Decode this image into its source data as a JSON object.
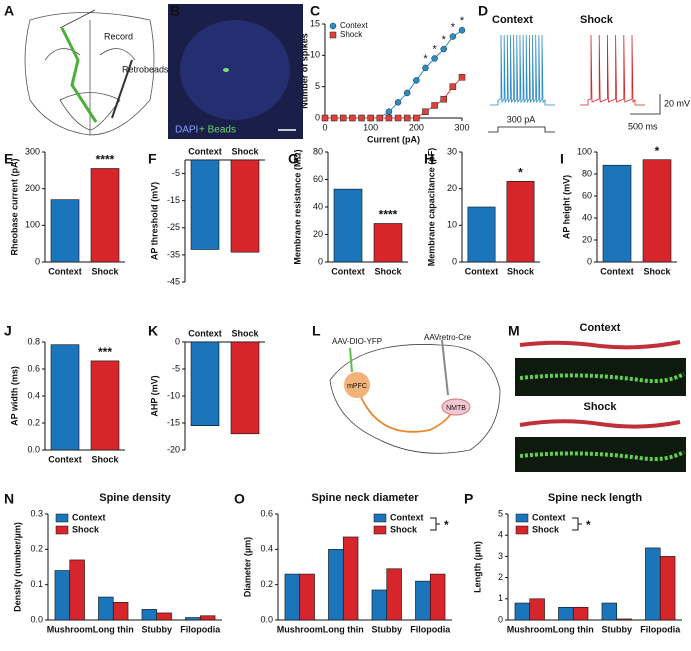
{
  "panel_letters": [
    "A",
    "B",
    "C",
    "D",
    "E",
    "F",
    "G",
    "H",
    "I",
    "J",
    "K",
    "L",
    "M",
    "N",
    "O",
    "P"
  ],
  "panel_a": {
    "record": "Record",
    "retrobeads": "Retrobeads"
  },
  "panel_b": {
    "dapi": "DAPI",
    "beads": "+ Beads"
  },
  "panel_d": {
    "context": "Context",
    "shock": "Shock",
    "step": "300 pA",
    "scale_v": "20 mV",
    "scale_t": "500 ms"
  },
  "panel_l": {
    "virus1": "AAV-DIO-YFP",
    "virus2": "AAVretro-Cre",
    "region1": "mPFC",
    "region2": "NMTB"
  },
  "panel_m": {
    "context": "Context",
    "shock": "Shock"
  },
  "chart_data": [
    {
      "type": "line",
      "xlabel": "Current (pA)",
      "ylabel": "Number of spikes",
      "x": [
        0,
        20,
        40,
        60,
        80,
        100,
        120,
        140,
        160,
        180,
        200,
        220,
        240,
        260,
        280,
        300
      ],
      "series": [
        {
          "name": "Context",
          "color": "#2b8cc4",
          "values": [
            0,
            0,
            0,
            0,
            0,
            0,
            0,
            1,
            2.5,
            4,
            6,
            8,
            9.5,
            11,
            13,
            14
          ]
        },
        {
          "name": "Shock",
          "color": "#e0403a",
          "values": [
            0,
            0,
            0,
            0,
            0,
            0,
            0,
            0,
            0,
            0,
            0,
            1,
            2,
            3,
            5,
            6.5
          ]
        }
      ],
      "xlim": [
        0,
        300
      ],
      "ylim": [
        0,
        15
      ],
      "xticks": [
        0,
        100,
        200,
        300
      ],
      "yticks": [
        0,
        5,
        10,
        15
      ],
      "legend": "upper left",
      "significance": [
        {
          "x": 220,
          "label": "*"
        },
        {
          "x": 240,
          "label": "*"
        },
        {
          "x": 260,
          "label": "*"
        },
        {
          "x": 280,
          "label": "*"
        },
        {
          "x": 300,
          "label": "*"
        }
      ]
    },
    {
      "type": "bar",
      "ylabel": "Rheobase current (pA)",
      "categories": [
        "Context",
        "Shock"
      ],
      "values": [
        170,
        255
      ],
      "colors": [
        "#1b75bb",
        "#d7262b"
      ],
      "ylim": [
        0,
        300
      ],
      "yticks": [
        0,
        100,
        200,
        300
      ],
      "annotation": "****"
    },
    {
      "type": "bar",
      "ylabel": "AP threshold (mV)",
      "categories": [
        "Context",
        "Shock"
      ],
      "values": [
        -33,
        -34
      ],
      "colors": [
        "#1b75bb",
        "#d7262b"
      ],
      "ylim": [
        -45,
        0
      ],
      "yticks": [
        -5,
        -15,
        -25,
        -35,
        -45
      ],
      "xaxis": "top"
    },
    {
      "type": "bar",
      "ylabel": "Membrane resistance (MΩ)",
      "categories": [
        "Context",
        "Shock"
      ],
      "values": [
        53,
        28
      ],
      "colors": [
        "#1b75bb",
        "#d7262b"
      ],
      "ylim": [
        0,
        80
      ],
      "yticks": [
        0,
        20,
        40,
        60,
        80
      ],
      "annotation": "****"
    },
    {
      "type": "bar",
      "ylabel": "Membrane capacitance (pF)",
      "categories": [
        "Context",
        "Shock"
      ],
      "values": [
        15,
        22
      ],
      "colors": [
        "#1b75bb",
        "#d7262b"
      ],
      "ylim": [
        0,
        30
      ],
      "yticks": [
        0,
        10,
        20,
        30
      ],
      "annotation": "*"
    },
    {
      "type": "bar",
      "ylabel": "AP height (mV)",
      "categories": [
        "Context",
        "Shock"
      ],
      "values": [
        88,
        93
      ],
      "colors": [
        "#1b75bb",
        "#d7262b"
      ],
      "ylim": [
        0,
        100
      ],
      "yticks": [
        0,
        20,
        40,
        60,
        80,
        100
      ],
      "annotation": "*"
    },
    {
      "type": "bar",
      "ylabel": "AP width (ms)",
      "categories": [
        "Context",
        "Shock"
      ],
      "values": [
        0.78,
        0.66
      ],
      "colors": [
        "#1b75bb",
        "#d7262b"
      ],
      "ylim": [
        0,
        0.8
      ],
      "yticks": [
        {
          "value": 0,
          "label": "0.0"
        },
        0.2,
        0.4,
        0.6,
        0.8
      ],
      "annotation": "***"
    },
    {
      "type": "bar",
      "ylabel": "AHP (mV)",
      "categories": [
        "Context",
        "Shock"
      ],
      "values": [
        -15.5,
        -17
      ],
      "colors": [
        "#1b75bb",
        "#d7262b"
      ],
      "ylim": [
        -20,
        0
      ],
      "yticks": [
        0,
        -5,
        -10,
        -15,
        -20
      ],
      "xaxis": "top"
    },
    {
      "type": "grouped_bar",
      "title": "Spine density",
      "ylabel": "Density (number/µm)",
      "categories": [
        "Mushroom",
        "Long thin",
        "Stubby",
        "Filopodia"
      ],
      "series": [
        {
          "name": "Context",
          "color": "#1b75bb",
          "values": [
            0.14,
            0.065,
            0.03,
            0.007
          ]
        },
        {
          "name": "Shock",
          "color": "#d7262b",
          "values": [
            0.17,
            0.05,
            0.02,
            0.012
          ]
        }
      ],
      "ylim": [
        0,
        0.3
      ],
      "yticks": [
        {
          "value": 0,
          "label": "0.0"
        },
        0.1,
        0.2,
        0.3
      ],
      "legend": "upper left"
    },
    {
      "type": "grouped_bar",
      "title": "Spine neck diameter",
      "ylabel": "Diameter (µm)",
      "categories": [
        "Mushroom",
        "Long thin",
        "Stubby",
        "Filopodia"
      ],
      "series": [
        {
          "name": "Context",
          "color": "#1b75bb",
          "values": [
            0.26,
            0.4,
            0.17,
            0.22
          ]
        },
        {
          "name": "Shock",
          "color": "#d7262b",
          "values": [
            0.26,
            0.47,
            0.29,
            0.26
          ]
        }
      ],
      "ylim": [
        0,
        0.6
      ],
      "yticks": [
        {
          "value": 0,
          "label": "0.0"
        },
        0.2,
        0.4,
        0.6
      ],
      "legend": "upper right",
      "annotation": "*"
    },
    {
      "type": "grouped_bar",
      "title": "Spine neck length",
      "ylabel": "Length (µm)",
      "categories": [
        "Mushroom",
        "Long thin",
        "Stubby",
        "Filopodia"
      ],
      "series": [
        {
          "name": "Context",
          "color": "#1b75bb",
          "values": [
            0.8,
            0.6,
            0.8,
            3.4
          ]
        },
        {
          "name": "Shock",
          "color": "#d7262b",
          "values": [
            1.0,
            0.6,
            0.05,
            3.0
          ]
        }
      ],
      "ylim": [
        0,
        5
      ],
      "yticks": [
        0,
        1,
        2,
        3,
        4,
        5
      ],
      "legend": "upper left",
      "annotation": "*"
    }
  ]
}
